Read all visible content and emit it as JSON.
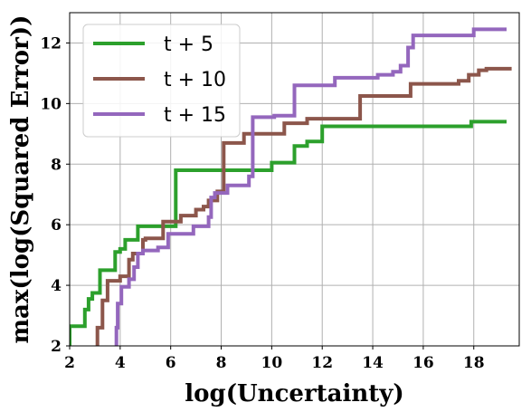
{
  "chart_data": {
    "type": "line",
    "title": "",
    "xlabel": "log(Uncertainty)",
    "ylabel": "max(log(Squared Error))",
    "xlim": [
      2,
      19.8
    ],
    "ylim": [
      2,
      13
    ],
    "xticks": [
      "2",
      "4",
      "6",
      "8",
      "10",
      "12",
      "14",
      "16",
      "18"
    ],
    "yticks": [
      "2",
      "4",
      "6",
      "8",
      "10",
      "12"
    ],
    "grid": true,
    "legend_position": "top-left",
    "series": [
      {
        "name": "t + 5",
        "color": "#2ca02c",
        "points": [
          [
            2.0,
            2.0
          ],
          [
            2.0,
            2.65
          ],
          [
            2.6,
            2.65
          ],
          [
            2.6,
            3.2
          ],
          [
            2.75,
            3.2
          ],
          [
            2.75,
            3.55
          ],
          [
            2.9,
            3.55
          ],
          [
            2.9,
            3.75
          ],
          [
            3.2,
            3.75
          ],
          [
            3.2,
            4.5
          ],
          [
            3.8,
            4.5
          ],
          [
            3.8,
            5.1
          ],
          [
            4.0,
            5.1
          ],
          [
            4.0,
            5.2
          ],
          [
            4.2,
            5.2
          ],
          [
            4.2,
            5.5
          ],
          [
            4.7,
            5.5
          ],
          [
            4.7,
            5.95
          ],
          [
            5.2,
            5.95
          ],
          [
            5.2,
            5.95
          ],
          [
            6.2,
            5.95
          ],
          [
            6.2,
            7.8
          ],
          [
            7.9,
            7.8
          ],
          [
            7.9,
            7.8
          ],
          [
            10.0,
            7.8
          ],
          [
            10.0,
            8.05
          ],
          [
            10.9,
            8.05
          ],
          [
            10.9,
            8.6
          ],
          [
            11.4,
            8.6
          ],
          [
            11.4,
            8.75
          ],
          [
            12.0,
            8.75
          ],
          [
            12.0,
            9.25
          ],
          [
            17.9,
            9.25
          ],
          [
            17.9,
            9.4
          ],
          [
            19.3,
            9.4
          ]
        ]
      },
      {
        "name": "t + 10",
        "color": "#8c564b",
        "points": [
          [
            3.1,
            2.0
          ],
          [
            3.1,
            2.6
          ],
          [
            3.3,
            2.6
          ],
          [
            3.3,
            3.5
          ],
          [
            3.5,
            3.5
          ],
          [
            3.5,
            4.15
          ],
          [
            4.0,
            4.15
          ],
          [
            4.0,
            4.3
          ],
          [
            4.35,
            4.3
          ],
          [
            4.35,
            4.85
          ],
          [
            4.5,
            4.85
          ],
          [
            4.5,
            5.05
          ],
          [
            4.9,
            5.05
          ],
          [
            4.9,
            5.5
          ],
          [
            5.0,
            5.5
          ],
          [
            5.0,
            5.55
          ],
          [
            5.7,
            5.55
          ],
          [
            5.7,
            6.1
          ],
          [
            6.4,
            6.1
          ],
          [
            6.4,
            6.3
          ],
          [
            7.0,
            6.3
          ],
          [
            7.0,
            6.5
          ],
          [
            7.3,
            6.5
          ],
          [
            7.3,
            6.6
          ],
          [
            7.5,
            6.6
          ],
          [
            7.5,
            6.8
          ],
          [
            7.85,
            6.8
          ],
          [
            7.85,
            7.1
          ],
          [
            8.1,
            7.1
          ],
          [
            8.1,
            8.7
          ],
          [
            8.9,
            8.7
          ],
          [
            8.9,
            9.0
          ],
          [
            10.5,
            9.0
          ],
          [
            10.5,
            9.35
          ],
          [
            11.4,
            9.35
          ],
          [
            11.4,
            9.5
          ],
          [
            13.5,
            9.5
          ],
          [
            13.5,
            10.25
          ],
          [
            15.5,
            10.25
          ],
          [
            15.5,
            10.65
          ],
          [
            17.4,
            10.65
          ],
          [
            17.4,
            10.75
          ],
          [
            17.8,
            10.75
          ],
          [
            17.8,
            10.95
          ],
          [
            18.2,
            10.95
          ],
          [
            18.2,
            11.1
          ],
          [
            18.5,
            11.1
          ],
          [
            18.5,
            11.15
          ],
          [
            19.5,
            11.15
          ]
        ]
      },
      {
        "name": "t + 15",
        "color": "#9467bd",
        "points": [
          [
            3.85,
            2.0
          ],
          [
            3.85,
            2.6
          ],
          [
            3.9,
            2.6
          ],
          [
            3.9,
            3.4
          ],
          [
            4.05,
            3.4
          ],
          [
            4.05,
            3.95
          ],
          [
            4.35,
            3.95
          ],
          [
            4.35,
            4.2
          ],
          [
            4.55,
            4.2
          ],
          [
            4.55,
            4.6
          ],
          [
            4.7,
            4.6
          ],
          [
            4.7,
            5.05
          ],
          [
            4.9,
            5.05
          ],
          [
            4.9,
            5.15
          ],
          [
            5.5,
            5.15
          ],
          [
            5.5,
            5.25
          ],
          [
            5.9,
            5.25
          ],
          [
            5.9,
            5.7
          ],
          [
            6.9,
            5.7
          ],
          [
            6.9,
            5.95
          ],
          [
            7.5,
            5.95
          ],
          [
            7.5,
            6.25
          ],
          [
            7.6,
            6.25
          ],
          [
            7.6,
            6.9
          ],
          [
            7.75,
            6.9
          ],
          [
            7.75,
            7.05
          ],
          [
            8.25,
            7.05
          ],
          [
            8.25,
            7.3
          ],
          [
            9.1,
            7.3
          ],
          [
            9.1,
            7.6
          ],
          [
            9.25,
            7.6
          ],
          [
            9.25,
            9.55
          ],
          [
            10.1,
            9.55
          ],
          [
            10.1,
            9.6
          ],
          [
            10.9,
            9.6
          ],
          [
            10.9,
            10.6
          ],
          [
            12.5,
            10.6
          ],
          [
            12.5,
            10.85
          ],
          [
            14.2,
            10.85
          ],
          [
            14.2,
            10.95
          ],
          [
            14.8,
            10.95
          ],
          [
            14.8,
            11.05
          ],
          [
            15.1,
            11.05
          ],
          [
            15.1,
            11.25
          ],
          [
            15.4,
            11.25
          ],
          [
            15.4,
            11.85
          ],
          [
            15.6,
            11.85
          ],
          [
            15.6,
            12.25
          ],
          [
            18.0,
            12.25
          ],
          [
            18.0,
            12.45
          ],
          [
            19.3,
            12.45
          ]
        ]
      }
    ]
  }
}
